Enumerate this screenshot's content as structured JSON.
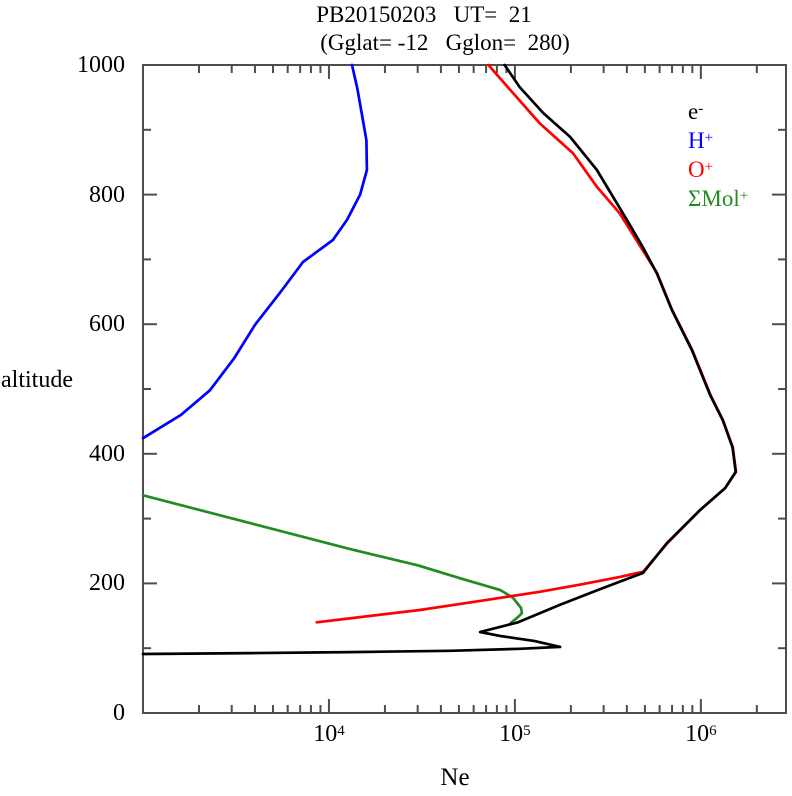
{
  "chart_data": {
    "type": "line",
    "title": "PB20150203   UT=  21",
    "subtitle": "(Gglat= -12   Gglon=  280)",
    "xlabel": "Ne",
    "ylabel": "altitude",
    "x_scale": "log",
    "x_range": [
      1000,
      2870000
    ],
    "y_range": [
      0,
      1000
    ],
    "grid": false,
    "legend_position": "top-right-inside",
    "x_major_ticks": [
      {
        "value": 10000,
        "base": "10",
        "exp": "4"
      },
      {
        "value": 100000,
        "base": "10",
        "exp": "5"
      },
      {
        "value": 1000000,
        "base": "10",
        "exp": "6"
      }
    ],
    "x_minor_ticks": [
      2000,
      3000,
      4000,
      5000,
      6000,
      7000,
      8000,
      9000,
      20000,
      30000,
      40000,
      50000,
      60000,
      70000,
      80000,
      90000,
      200000,
      300000,
      400000,
      500000,
      600000,
      700000,
      800000,
      900000,
      2000000
    ],
    "y_major_ticks": [
      {
        "value": 0,
        "label": "0"
      },
      {
        "value": 200,
        "label": "200"
      },
      {
        "value": 400,
        "label": "400"
      },
      {
        "value": 600,
        "label": "600"
      },
      {
        "value": 800,
        "label": "800"
      },
      {
        "value": 1000,
        "label": "1000"
      }
    ],
    "y_minor_ticks": [
      100,
      300,
      500,
      700,
      900
    ],
    "frame_color": "#4d4d4d",
    "legend": [
      {
        "text": "e",
        "sup": "-",
        "color": "#000000",
        "slug": "e"
      },
      {
        "text": "H",
        "sup": "+",
        "color": "#0000ff",
        "slug": "h-plus"
      },
      {
        "text": "O",
        "sup": "+",
        "color": "#ff0000",
        "slug": "o-plus"
      },
      {
        "text": "ΣMol",
        "sup": "+",
        "color": "#228b22",
        "slug": "mol-plus"
      }
    ],
    "series": [
      {
        "name": "H+",
        "slug": "h-plus",
        "color": "#0000ff",
        "points": [
          [
            1000,
            424
          ],
          [
            1600,
            460
          ],
          [
            2290,
            498
          ],
          [
            3100,
            548
          ],
          [
            4000,
            599
          ],
          [
            5500,
            650
          ],
          [
            7250,
            696
          ],
          [
            10500,
            730
          ],
          [
            12500,
            761
          ],
          [
            14700,
            800
          ],
          [
            16000,
            838
          ],
          [
            15900,
            884
          ],
          [
            14900,
            930
          ],
          [
            14200,
            964
          ],
          [
            13300,
            1000
          ]
        ]
      },
      {
        "name": "ΣMol+",
        "slug": "mol-plus",
        "color": "#228b22",
        "points": [
          [
            1000,
            336
          ],
          [
            3760,
            293
          ],
          [
            13000,
            253
          ],
          [
            30000,
            228
          ],
          [
            50600,
            208
          ],
          [
            83000,
            190
          ],
          [
            97500,
            178
          ],
          [
            108000,
            162
          ],
          [
            109000,
            154
          ],
          [
            103000,
            147
          ],
          [
            95000,
            139
          ]
        ]
      },
      {
        "name": "O+",
        "slug": "o-plus",
        "color": "#ff0000",
        "points": [
          [
            8600,
            140
          ],
          [
            14700,
            148
          ],
          [
            30800,
            159
          ],
          [
            65000,
            173
          ],
          [
            136000,
            187
          ],
          [
            223000,
            198
          ],
          [
            367000,
            210
          ],
          [
            490000,
            218
          ],
          [
            660000,
            262
          ],
          [
            990000,
            313
          ],
          [
            1350000,
            347
          ],
          [
            1545000,
            372
          ],
          [
            1485000,
            410
          ],
          [
            1315000,
            452
          ],
          [
            1125000,
            491
          ],
          [
            900000,
            560
          ],
          [
            700000,
            622
          ],
          [
            581000,
            679
          ],
          [
            450000,
            730
          ],
          [
            366000,
            771
          ],
          [
            276000,
            812
          ],
          [
            205000,
            864
          ],
          [
            136000,
            910
          ],
          [
            97500,
            957
          ],
          [
            72000,
            1000
          ]
        ]
      },
      {
        "name": "e-",
        "slug": "e",
        "color": "#000000",
        "points": [
          [
            1000,
            91
          ],
          [
            3760,
            92.5
          ],
          [
            13000,
            94
          ],
          [
            44800,
            96
          ],
          [
            106000,
            99
          ],
          [
            175000,
            102
          ],
          [
            128000,
            111
          ],
          [
            83000,
            119
          ],
          [
            65000,
            125
          ],
          [
            104000,
            140
          ],
          [
            175000,
            167
          ],
          [
            286000,
            191
          ],
          [
            488000,
            216
          ],
          [
            656000,
            262
          ],
          [
            988000,
            313
          ],
          [
            1350000,
            347
          ],
          [
            1540000,
            372
          ],
          [
            1480000,
            410
          ],
          [
            1310000,
            452
          ],
          [
            1120000,
            491
          ],
          [
            895000,
            560
          ],
          [
            698000,
            622
          ],
          [
            579000,
            679
          ],
          [
            487000,
            719
          ],
          [
            400000,
            761
          ],
          [
            276000,
            838
          ],
          [
            198000,
            889
          ],
          [
            142000,
            926
          ],
          [
            106000,
            966
          ],
          [
            88000,
            1000
          ]
        ]
      }
    ]
  }
}
